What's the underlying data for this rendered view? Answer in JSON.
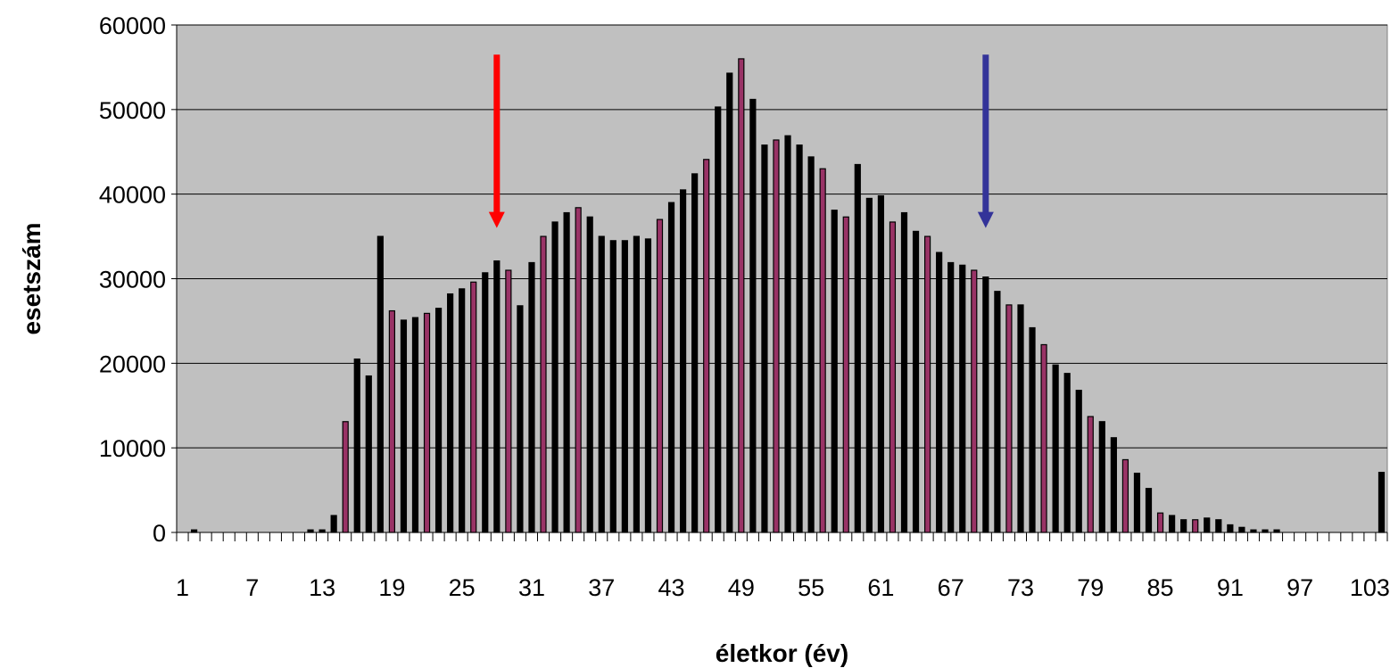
{
  "chart_data": {
    "type": "bar",
    "title": "",
    "xlabel": "életkor (év)",
    "ylabel": "esetszám",
    "categories": [
      1,
      2,
      3,
      4,
      5,
      6,
      7,
      8,
      9,
      10,
      11,
      12,
      13,
      14,
      15,
      16,
      17,
      18,
      19,
      20,
      21,
      22,
      23,
      24,
      25,
      26,
      27,
      28,
      29,
      30,
      31,
      32,
      33,
      34,
      35,
      36,
      37,
      38,
      39,
      40,
      41,
      42,
      43,
      44,
      45,
      46,
      47,
      48,
      49,
      50,
      51,
      52,
      53,
      54,
      55,
      56,
      57,
      58,
      59,
      60,
      61,
      62,
      63,
      64,
      65,
      66,
      67,
      68,
      69,
      70,
      71,
      72,
      73,
      74,
      75,
      76,
      77,
      78,
      79,
      80,
      81,
      82,
      83,
      84,
      85,
      86,
      87,
      88,
      89,
      90,
      91,
      92,
      93,
      94,
      95,
      96,
      97,
      98,
      99,
      100,
      101,
      102,
      103,
      104
    ],
    "x_tick_labels": [
      "1",
      "7",
      "13",
      "19",
      "25",
      "31",
      "37",
      "43",
      "49",
      "55",
      "61",
      "67",
      "73",
      "79",
      "85",
      "91",
      "97",
      "103"
    ],
    "values": [
      0,
      300,
      0,
      0,
      0,
      0,
      0,
      0,
      0,
      0,
      0,
      300,
      300,
      2000,
      13100,
      20500,
      18500,
      35000,
      26200,
      25100,
      25400,
      25900,
      26500,
      28200,
      28800,
      29600,
      30700,
      32100,
      31000,
      26800,
      31900,
      35000,
      36700,
      37800,
      38400,
      37300,
      35000,
      34500,
      34500,
      35000,
      34700,
      37000,
      39000,
      40500,
      42400,
      44100,
      50300,
      54300,
      56000,
      51200,
      45800,
      46400,
      46900,
      45800,
      44400,
      43000,
      38100,
      37300,
      43500,
      39500,
      39800,
      36700,
      37800,
      35600,
      35000,
      33100,
      31900,
      31600,
      31000,
      30200,
      28500,
      26900,
      26900,
      24200,
      22200,
      19800,
      18800,
      16800,
      13700,
      13100,
      11200,
      8600,
      7000,
      5200,
      2300,
      2000,
      1500,
      1500,
      1700,
      1500,
      900,
      600,
      300,
      300,
      300,
      0,
      0,
      0,
      0,
      0,
      0,
      0,
      0,
      7100
    ],
    "highlighted_categories": [
      15,
      19,
      22,
      26,
      29,
      32,
      35,
      42,
      46,
      49,
      52,
      56,
      58,
      62,
      65,
      69,
      72,
      75,
      79,
      82,
      85,
      88
    ],
    "bar_color": "#000000",
    "highlight_color": "#993366",
    "background_color": "#c0c0c0",
    "ylim": [
      0,
      60000
    ],
    "yticks": [
      0,
      10000,
      20000,
      30000,
      40000,
      50000,
      60000
    ],
    "grid": "horizontal",
    "legend": "none",
    "annotations": [
      {
        "type": "arrow",
        "color": "#ff0000",
        "x": 28,
        "y_from": 56500,
        "y_to": 36000
      },
      {
        "type": "arrow",
        "color": "#333399",
        "x": 70,
        "y_from": 56500,
        "y_to": 36000
      }
    ]
  }
}
